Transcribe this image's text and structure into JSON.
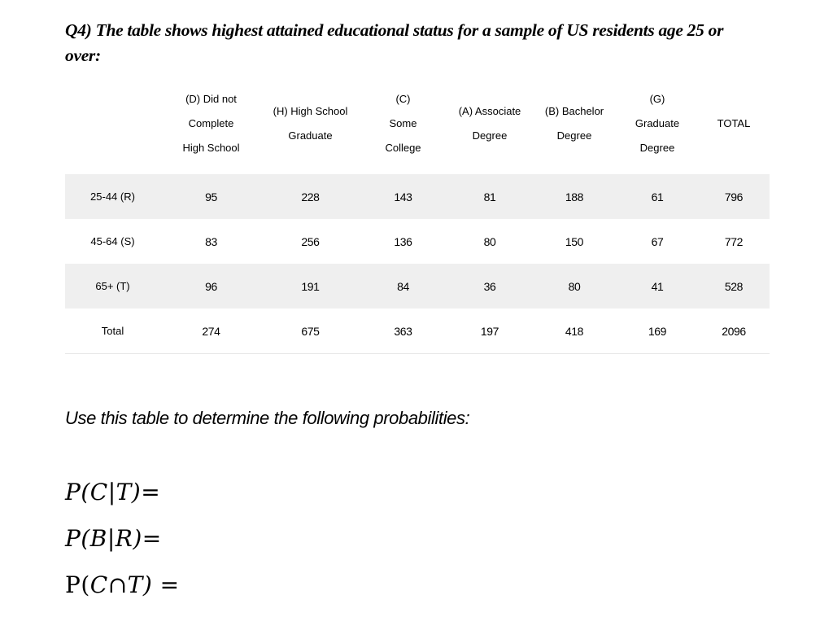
{
  "title": "Q4) The table shows highest attained educational status for a sample of US residents age 25 or\nover:",
  "instruction": "Use this table to determine the following probabilities:",
  "table": {
    "columns": [
      "",
      "(D) Did not\nComplete\nHigh School",
      "(H) High School\nGraduate",
      "(C)\nSome\nCollege",
      "(A) Associate\nDegree",
      "(B) Bachelor\nDegree",
      "(G)\nGraduate\nDegree",
      "TOTAL"
    ],
    "rows": [
      {
        "label": "25-44 (R)",
        "values": [
          95,
          228,
          143,
          81,
          188,
          61,
          796
        ]
      },
      {
        "label": "45-64 (S)",
        "values": [
          83,
          256,
          136,
          80,
          150,
          67,
          772
        ]
      },
      {
        "label": "65+ (T)",
        "values": [
          96,
          191,
          84,
          36,
          80,
          41,
          528
        ]
      },
      {
        "label": "Total",
        "values": [
          274,
          675,
          363,
          197,
          418,
          169,
          2096
        ]
      }
    ]
  },
  "expressions": [
    {
      "text": "P(C|T)="
    },
    {
      "text": "P(B|R)="
    },
    {
      "text": "P(C∩T) ="
    }
  ],
  "colors": {
    "shaded_row": "#efefef",
    "table_border": "#e7e7e7",
    "text": "#000000"
  }
}
